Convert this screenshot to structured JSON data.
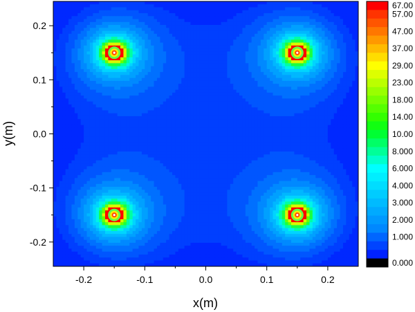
{
  "chart_data": {
    "type": "heatmap",
    "subtype": "filled-contour",
    "title": "",
    "xlabel": "x(m)",
    "ylabel": "y(m)",
    "xlim": [
      -0.25,
      0.25
    ],
    "ylim": [
      -0.245,
      0.245
    ],
    "x_ticks": [
      -0.2,
      -0.1,
      0.0,
      0.1,
      0.2
    ],
    "x_tick_labels": [
      "-0.2",
      "-0.1",
      "0.0",
      "0.1",
      "0.2"
    ],
    "y_ticks": [
      0.2,
      0.1,
      0.0,
      -0.1,
      -0.2
    ],
    "y_tick_labels": [
      "0.2",
      "0.1",
      "0.0",
      "-0.1",
      "-0.2"
    ],
    "grid": false,
    "legend": "colorbar-right",
    "sources": [
      {
        "x": -0.15,
        "y": 0.15
      },
      {
        "x": 0.15,
        "y": 0.15
      },
      {
        "x": -0.15,
        "y": -0.15
      },
      {
        "x": 0.15,
        "y": -0.15
      }
    ],
    "peak_value": 67.0,
    "colorbar": {
      "levels": [
        {
          "label": "67.00",
          "color": "#ff0000"
        },
        {
          "label": "57.00",
          "color": "#ff3300"
        },
        {
          "label": "",
          "color": "#ff5500"
        },
        {
          "label": "47.00",
          "color": "#ff7700"
        },
        {
          "label": "",
          "color": "#ff9900"
        },
        {
          "label": "37.00",
          "color": "#ffbb00"
        },
        {
          "label": "",
          "color": "#ffdd00"
        },
        {
          "label": "29.00",
          "color": "#ffff00"
        },
        {
          "label": "",
          "color": "#ddff00"
        },
        {
          "label": "23.00",
          "color": "#bbff00"
        },
        {
          "label": "",
          "color": "#99ff00"
        },
        {
          "label": "18.00",
          "color": "#77ff00"
        },
        {
          "label": "",
          "color": "#55ff00"
        },
        {
          "label": "14.00",
          "color": "#33ff00"
        },
        {
          "label": "",
          "color": "#11ff11"
        },
        {
          "label": "10.00",
          "color": "#00ff33"
        },
        {
          "label": "",
          "color": "#00ff66"
        },
        {
          "label": "8.000",
          "color": "#00ff99"
        },
        {
          "label": "",
          "color": "#00ffcc"
        },
        {
          "label": "6.000",
          "color": "#00ffff"
        },
        {
          "label": "",
          "color": "#00eeff"
        },
        {
          "label": "4.000",
          "color": "#00ddff"
        },
        {
          "label": "",
          "color": "#00ccff"
        },
        {
          "label": "3.000",
          "color": "#00bbff"
        },
        {
          "label": "",
          "color": "#00aaff"
        },
        {
          "label": "2.000",
          "color": "#0099ff"
        },
        {
          "label": "",
          "color": "#0088ff"
        },
        {
          "label": "1.000",
          "color": "#0066ff"
        },
        {
          "label": "",
          "color": "#0044ff"
        },
        {
          "label": "",
          "color": "#0022ff"
        },
        {
          "label": "0.000",
          "color": "#000000"
        }
      ]
    }
  }
}
